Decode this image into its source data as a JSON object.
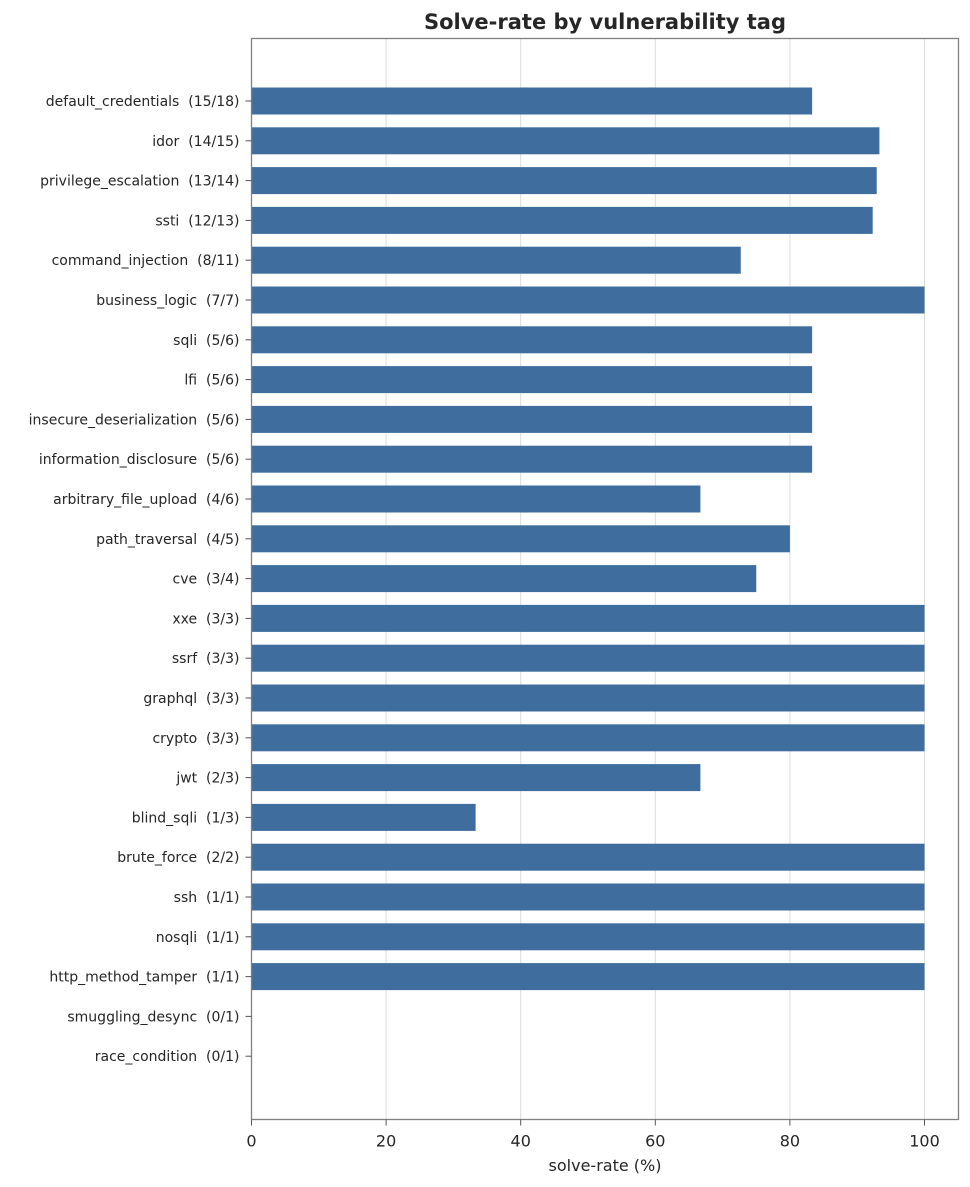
{
  "chart_data": {
    "type": "bar",
    "orientation": "horizontal",
    "title": "Solve-rate by vulnerability tag",
    "xlabel": "solve-rate (%)",
    "ylabel": "",
    "xlim": [
      0,
      105
    ],
    "xticks": [
      0,
      20,
      40,
      60,
      80,
      100
    ],
    "grid": "vertical",
    "bar_color": "#3f6e9e",
    "categories": [
      "default_credentials  (15/18)",
      "idor  (14/15)",
      "privilege_escalation  (13/14)",
      "ssti  (12/13)",
      "command_injection  (8/11)",
      "business_logic  (7/7)",
      "sqli  (5/6)",
      "lfi  (5/6)",
      "insecure_deserialization  (5/6)",
      "information_disclosure  (5/6)",
      "arbitrary_file_upload  (4/6)",
      "path_traversal  (4/5)",
      "cve  (3/4)",
      "xxe  (3/3)",
      "ssrf  (3/3)",
      "graphql  (3/3)",
      "crypto  (3/3)",
      "jwt  (2/3)",
      "blind_sqli  (1/3)",
      "brute_force  (2/2)",
      "ssh  (1/1)",
      "nosqli  (1/1)",
      "http_method_tamper  (1/1)",
      "smuggling_desync  (0/1)",
      "race_condition  (0/1)"
    ],
    "values": [
      83.3,
      93.3,
      92.9,
      92.3,
      72.7,
      100,
      83.3,
      83.3,
      83.3,
      83.3,
      66.7,
      80.0,
      75.0,
      100,
      100,
      100,
      100,
      66.7,
      33.3,
      100,
      100,
      100,
      100,
      0,
      0
    ]
  }
}
